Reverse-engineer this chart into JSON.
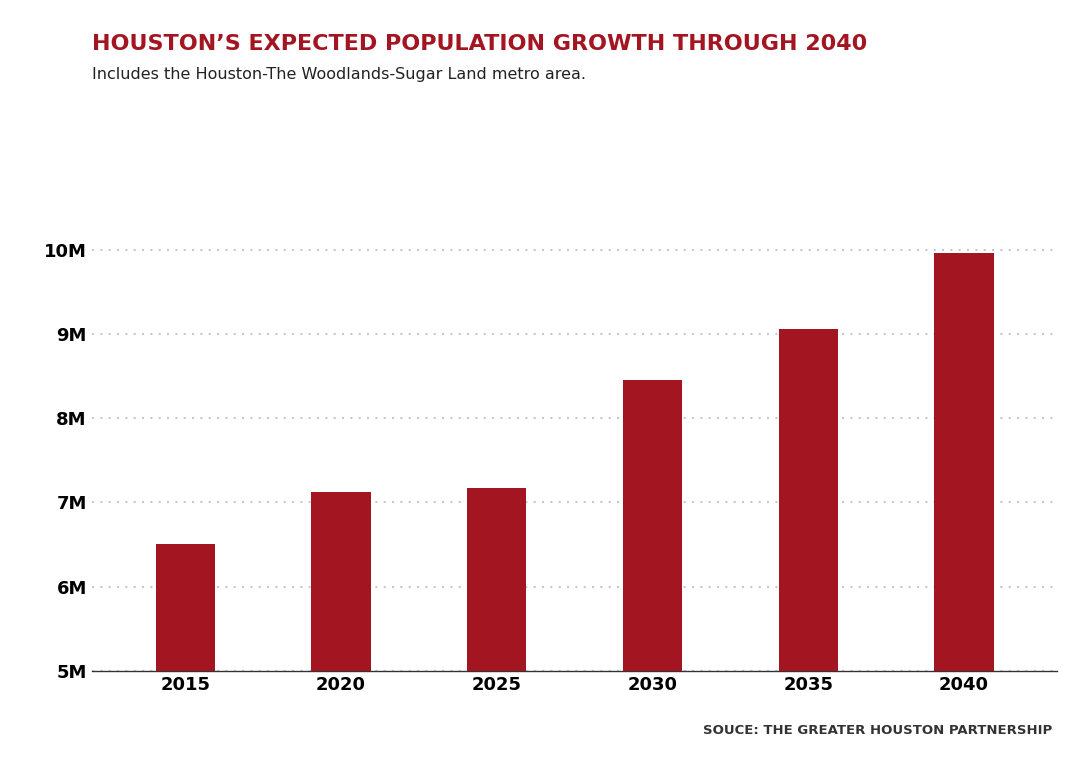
{
  "title": "HOUSTON’S EXPECTED POPULATION GROWTH THROUGH 2040",
  "subtitle": "Includes the Houston-The Woodlands-Sugar Land metro area.",
  "source": "SOUCE: THE GREATER HOUSTON PARTNERSHIP",
  "categories": [
    2015,
    2020,
    2025,
    2030,
    2035,
    2040
  ],
  "values": [
    6500000,
    7120000,
    7170000,
    8450000,
    9060000,
    9960000
  ],
  "bar_color": "#a31621",
  "background_color": "#ffffff",
  "title_color": "#a31621",
  "subtitle_color": "#222222",
  "axis_color": "#333333",
  "grid_color": "#c8c8c8",
  "ylim": [
    5000000,
    10400000
  ],
  "yticks": [
    5000000,
    6000000,
    7000000,
    8000000,
    9000000,
    10000000
  ],
  "ytick_labels": [
    "5M",
    "6M",
    "7M",
    "8M",
    "9M",
    "10M"
  ],
  "title_fontsize": 16,
  "subtitle_fontsize": 11.5,
  "tick_fontsize": 13,
  "source_fontsize": 9.5,
  "bar_width": 0.38
}
